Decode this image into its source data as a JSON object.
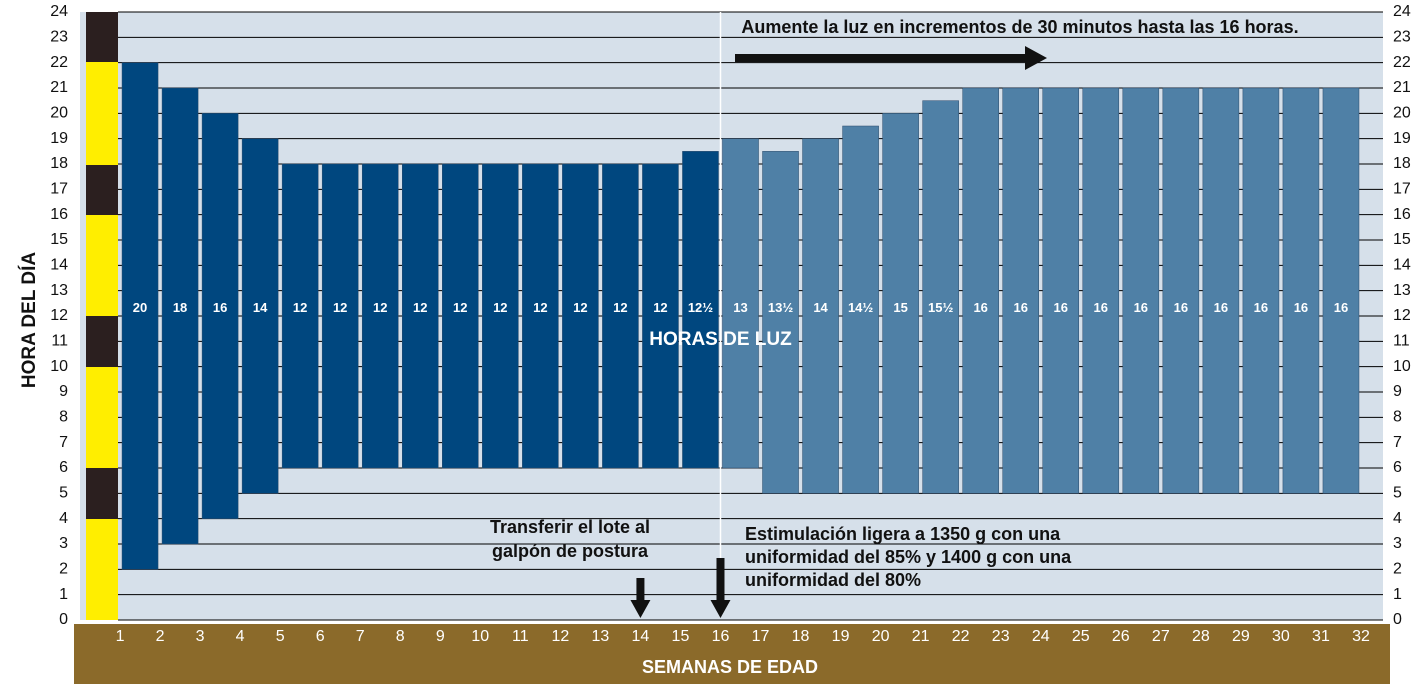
{
  "chart_data": {
    "type": "floating_bar",
    "ylabel": "HORA DEL DÍA",
    "xlabel": "SEMANAS DE EDAD",
    "xlim": [
      0,
      32.55
    ],
    "xticks": [
      1,
      2,
      3,
      4,
      5,
      6,
      7,
      8,
      9,
      10,
      11,
      12,
      13,
      14,
      15,
      16,
      17,
      18,
      19,
      20,
      21,
      22,
      23,
      24,
      25,
      26,
      27,
      28,
      29,
      30,
      31,
      32
    ],
    "ylim": [
      0,
      24
    ],
    "yticks": [
      0,
      1,
      2,
      3,
      4,
      5,
      6,
      7,
      8,
      9,
      10,
      11,
      12,
      13,
      14,
      15,
      16,
      17,
      18,
      19,
      20,
      21,
      22,
      23,
      24
    ],
    "grid": true,
    "series": [
      {
        "color": "#00477f",
        "x": [
          1,
          2,
          3,
          4,
          5,
          6,
          7,
          8,
          9,
          10,
          11,
          12,
          13,
          14,
          15
        ],
        "start": [
          2,
          3,
          4,
          5,
          6,
          6,
          6,
          6,
          6,
          6,
          6,
          6,
          6,
          6,
          6
        ],
        "values": [
          20,
          18,
          16,
          14,
          12,
          12,
          12,
          12,
          12,
          12,
          12,
          12,
          12,
          12,
          12.5
        ],
        "value_labels": [
          "20",
          "18",
          "16",
          "14",
          "12",
          "12",
          "12",
          "12",
          "12",
          "12",
          "12",
          "12",
          "12",
          "12",
          "12½"
        ]
      },
      {
        "color": "#4f80a6",
        "x": [
          16,
          17,
          18,
          19,
          20,
          21,
          22,
          23,
          24,
          25,
          26,
          27,
          28,
          29,
          30,
          31
        ],
        "start": [
          6,
          5,
          5,
          5,
          5,
          5,
          5,
          5,
          5,
          5,
          5,
          5,
          5,
          5,
          5,
          5
        ],
        "values": [
          13,
          13.5,
          14,
          14.5,
          15,
          15.5,
          16,
          16,
          16,
          16,
          16,
          16,
          16,
          16,
          16,
          16
        ],
        "value_labels": [
          "13",
          "13½",
          "14",
          "14½",
          "15",
          "15½",
          "16",
          "16",
          "16",
          "16",
          "16",
          "16",
          "16",
          "16",
          "16",
          "16"
        ]
      }
    ],
    "annotations": {
      "center": "HORAS DE LUZ",
      "increase": "Aumente la luz en incrementos de 30 minutos hasta las 16 horas.",
      "transfer": [
        "Transferir el lote al",
        "galpón de postura"
      ],
      "stimulation": [
        "Estimulación ligera a 1350 g con una",
        "uniformidad del 85% y 1400 g con una",
        "uniformidad del 80%"
      ]
    }
  }
}
